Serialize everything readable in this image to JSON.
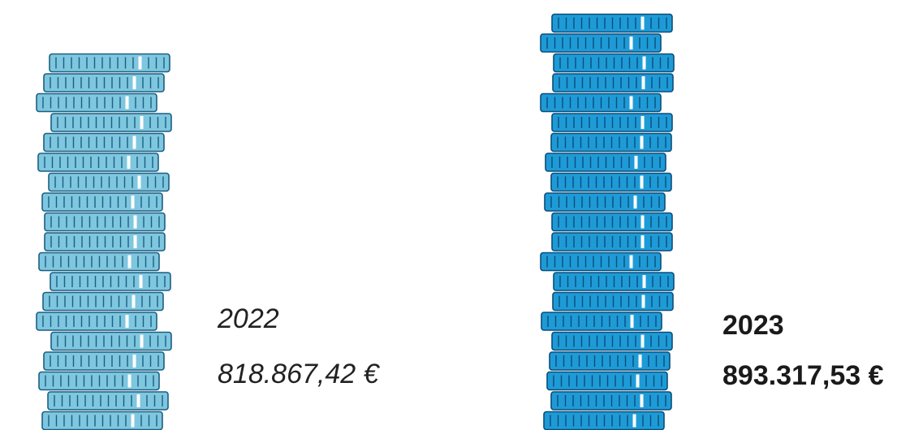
{
  "items": [
    {
      "year": "2022",
      "amount": "818.867,42 €"
    },
    {
      "year": "2023",
      "amount": "893.317,53 €"
    }
  ]
}
